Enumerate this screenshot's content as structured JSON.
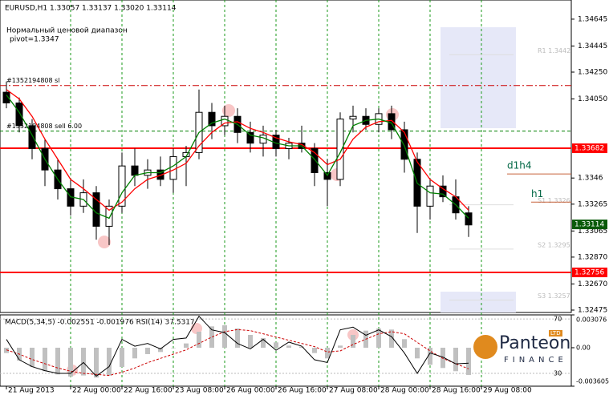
{
  "chart_data": [
    {
      "type": "candlestick",
      "title": "EURUSD,H1  1.33057 1.33137 1.33020 1.33114",
      "annotations": [
        "Нормальный ценовой диапазон",
        "pivot=1.3347"
      ],
      "categories": [
        "21 Aug 2013",
        null,
        null,
        null,
        null,
        "22 Aug 00:00",
        null,
        null,
        null,
        "22 Aug 16:00",
        null,
        null,
        null,
        "23 Aug 08:00",
        null,
        null,
        null,
        "26 Aug 00:00",
        null,
        null,
        null,
        "26 Aug 16:00",
        null,
        null,
        null,
        "27 Aug 08:00",
        null,
        null,
        null,
        "28 Aug 00:00",
        null,
        null,
        null,
        "28 Aug 16:00",
        null,
        null,
        null,
        "29 Aug 08:00"
      ],
      "open": [
        1.341,
        1.3402,
        1.3385,
        1.3368,
        1.3352,
        1.3338,
        1.3325,
        1.3335,
        1.331,
        1.3325,
        1.3355,
        1.3348,
        1.3352,
        1.3345,
        1.3362,
        1.3365,
        1.3395,
        1.3385,
        1.3392,
        1.338,
        1.3372,
        1.3378,
        1.3368,
        1.3372,
        1.3368,
        1.335,
        1.3345,
        1.339,
        1.3392,
        1.3386,
        1.3394,
        1.3382,
        1.336,
        1.3325,
        1.334,
        1.3332,
        1.332,
        null
      ],
      "high": [
        1.3418,
        1.3406,
        1.339,
        1.3375,
        1.336,
        1.3345,
        1.3345,
        1.334,
        1.333,
        1.3365,
        1.3368,
        1.336,
        1.3362,
        1.3368,
        1.337,
        1.3412,
        1.3402,
        1.34,
        1.3398,
        1.3388,
        1.3385,
        1.3382,
        1.3376,
        1.3385,
        1.3372,
        1.336,
        1.3395,
        1.34,
        1.3398,
        1.3398,
        1.34,
        1.3388,
        1.3365,
        1.3345,
        1.3348,
        1.3345,
        1.3325,
        null
      ],
      "low": [
        1.3398,
        1.338,
        1.336,
        1.334,
        1.333,
        1.3318,
        1.332,
        1.33,
        1.3296,
        1.332,
        1.334,
        1.3338,
        1.334,
        1.3335,
        1.334,
        1.336,
        1.3375,
        1.3378,
        1.3372,
        1.3365,
        1.3362,
        1.3362,
        1.336,
        1.3365,
        1.334,
        1.3325,
        1.334,
        1.338,
        1.3382,
        1.338,
        1.3375,
        1.335,
        1.3305,
        1.3315,
        1.3328,
        1.3315,
        1.3302,
        null
      ],
      "close": [
        1.3402,
        1.3385,
        1.3368,
        1.3352,
        1.3338,
        1.3325,
        1.3335,
        1.331,
        1.3325,
        1.3355,
        1.3348,
        1.3352,
        1.3345,
        1.3362,
        1.3365,
        1.3395,
        1.3385,
        1.3392,
        1.338,
        1.3372,
        1.3378,
        1.3368,
        1.3372,
        1.3368,
        1.335,
        1.3345,
        1.339,
        1.3392,
        1.3386,
        1.3394,
        1.3382,
        1.336,
        1.3325,
        1.334,
        1.3332,
        1.332,
        1.3311,
        null
      ],
      "series": [
        {
          "color": "#ff0000",
          "values": [
            1.3412,
            1.3405,
            1.3392,
            1.3375,
            1.336,
            1.3345,
            1.3338,
            1.333,
            1.3322,
            1.3328,
            1.3338,
            1.3345,
            1.3348,
            1.3352,
            1.3357,
            1.337,
            1.338,
            1.3387,
            1.3388,
            1.3383,
            1.338,
            1.3376,
            1.3373,
            1.3371,
            1.3365,
            1.3356,
            1.336,
            1.3375,
            1.3384,
            1.3388,
            1.3389,
            1.338,
            1.3358,
            1.3345,
            1.3338,
            1.3332,
            1.3322,
            null
          ]
        },
        {
          "color": "#008000",
          "values": [
            1.3408,
            1.3395,
            1.3378,
            1.336,
            1.3345,
            1.3332,
            1.333,
            1.332,
            1.3316,
            1.3335,
            1.3348,
            1.335,
            1.335,
            1.3355,
            1.3362,
            1.338,
            1.3387,
            1.339,
            1.3386,
            1.3378,
            1.3376,
            1.3372,
            1.337,
            1.337,
            1.336,
            1.3348,
            1.3365,
            1.3385,
            1.3389,
            1.339,
            1.3387,
            1.337,
            1.3342,
            1.3335,
            1.3334,
            1.3326,
            1.3316,
            null
          ]
        }
      ],
      "ylim": [
        1.32457,
        1.34788
      ],
      "yticks": [
        1.34645,
        1.34445,
        {
          "value": 1.3425,
          "label": "1.34250"
        },
        {
          "value": 1.3405,
          "label": "1.34050"
        },
        1.3346,
        1.33265,
        1.33065,
        {
          "value": 1.3287,
          "label": "1.32870"
        },
        {
          "value": 1.3267,
          "label": "1.32670"
        },
        1.32475
      ],
      "levels": [
        {
          "value": 1.33682,
          "color": "#ff0000"
        },
        {
          "value": 1.32756,
          "color": "#ff0000"
        }
      ],
      "current_price": 1.33114,
      "orders": [
        {
          "label": "#1352194808 sl",
          "value": 1.3415,
          "color": "#cc0000"
        },
        {
          "label": "#1352194808 sell 6.00",
          "value": 1.3381,
          "color": "#008000"
        }
      ],
      "pivot_labels": [
        {
          "label": "d1h4",
          "value": 1.3349
        },
        {
          "label": "h1",
          "value": 1.3328
        }
      ],
      "faint_labels": [
        {
          "label": "R1 1.3442",
          "value": 1.3438
        },
        {
          "label": "S1 1.3326",
          "value": 1.3326
        },
        {
          "label": "S2 1.3295",
          "value": 1.3293
        },
        {
          "label": "S3 1.3257",
          "value": 1.3255
        }
      ],
      "grid": "vertical"
    },
    {
      "type": "macd",
      "title": "MACD(5,34,5) -0.002551 -0.001976  RSI(14) 37.5317",
      "values": [
        -0.0005,
        -0.0012,
        -0.0018,
        -0.0022,
        -0.0025,
        -0.0027,
        -0.0026,
        -0.0028,
        -0.0026,
        -0.0018,
        -0.001,
        -0.0006,
        -0.0004,
        0.0,
        0.0004,
        0.0015,
        0.002,
        0.0021,
        0.0018,
        0.0012,
        0.0009,
        0.0005,
        0.0002,
        0.0001,
        -0.0005,
        -0.001,
        0.0002,
        0.0012,
        0.0016,
        0.0018,
        0.0017,
        0.0008,
        -0.001,
        -0.0016,
        -0.0019,
        -0.0022,
        -0.002551,
        null
      ],
      "signal": [
        -0.0002,
        -0.0006,
        -0.0011,
        -0.0015,
        -0.0019,
        -0.0022,
        -0.0024,
        -0.0025,
        -0.0026,
        -0.0023,
        -0.0019,
        -0.0014,
        -0.001,
        -0.0006,
        -0.0002,
        0.0004,
        0.001,
        0.0015,
        0.0017,
        0.0016,
        0.0013,
        0.001,
        0.0007,
        0.0004,
        0.0001,
        -0.0004,
        -0.0003,
        0.0003,
        0.0008,
        0.0013,
        0.0015,
        0.0013,
        0.0005,
        -0.0003,
        -0.001,
        -0.0015,
        -0.001976,
        null
      ],
      "signal_color": "#cc0000",
      "rsi": [
        55,
        40,
        35,
        32,
        30,
        30,
        38,
        28,
        35,
        55,
        50,
        52,
        48,
        55,
        56,
        72,
        62,
        60,
        52,
        48,
        55,
        47,
        53,
        50,
        40,
        38,
        62,
        64,
        58,
        62,
        57,
        45,
        30,
        45,
        42,
        37,
        37.5317,
        null
      ],
      "ylim": [
        -0.003605,
        0.003076
      ],
      "yticks": [
        0.003076,
        {
          "value": 0,
          "label": "0.00"
        },
        -0.003605
      ],
      "rsi_ylim": [
        20.6,
        73
      ],
      "rsi_yticks": [
        70,
        30
      ]
    }
  ],
  "logo": {
    "name": "Panteon",
    "sub": "FINANCE",
    "badge": "LTD"
  }
}
